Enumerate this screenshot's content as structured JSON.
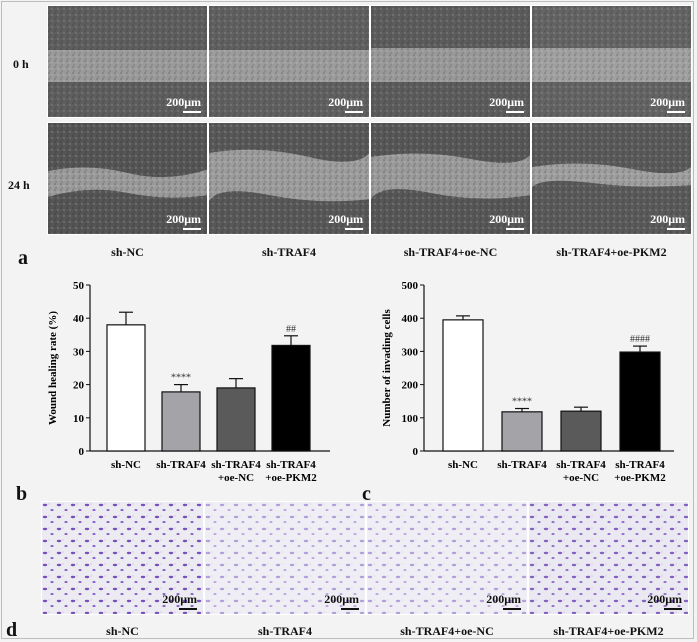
{
  "panels": {
    "a": {
      "letter": "a",
      "rows": [
        "0 h",
        "24 h"
      ],
      "columns": [
        "sh-NC",
        "sh-TRAF4",
        "sh-TRAF4+oe-NC",
        "sh-TRAF4+oe-PKM2"
      ],
      "scale_bar": "200μm"
    },
    "b": {
      "letter": "b"
    },
    "c": {
      "letter": "c"
    },
    "d": {
      "letter": "d",
      "columns": [
        "sh-NC",
        "sh-TRAF4",
        "sh-TRAF4+oe-NC",
        "sh-TRAF4+oe-PKM2"
      ],
      "scale_bar": "200μm"
    }
  },
  "chart_data": [
    {
      "type": "bar",
      "panel": "b",
      "categories": [
        [
          "sh-NC"
        ],
        [
          "sh-TRAF4"
        ],
        [
          "sh-TRAF4",
          "+oe-NC"
        ],
        [
          "sh-TRAF4",
          "+oe-PKM2"
        ]
      ],
      "values": [
        38,
        17.8,
        19,
        31.8
      ],
      "errors": [
        3.8,
        2.2,
        2.8,
        2.9
      ],
      "annotations": [
        "",
        "****",
        "",
        "##"
      ],
      "colors": [
        "#ffffff",
        "#a3a3a8",
        "#5a5a5a",
        "#000000"
      ],
      "ylabel": "Wound healing rate (%)",
      "ylim": [
        0,
        50
      ],
      "yticks": [
        0,
        10,
        20,
        30,
        40,
        50
      ]
    },
    {
      "type": "bar",
      "panel": "c",
      "categories": [
        [
          "sh-NC"
        ],
        [
          "sh-TRAF4"
        ],
        [
          "sh-TRAF4",
          "+oe-NC"
        ],
        [
          "sh-TRAF4",
          "+oe-PKM2"
        ]
      ],
      "values": [
        395,
        118,
        120,
        298
      ],
      "errors": [
        12,
        10,
        12,
        18
      ],
      "annotations": [
        "",
        "****",
        "",
        "####"
      ],
      "colors": [
        "#ffffff",
        "#a3a3a8",
        "#5a5a5a",
        "#000000"
      ],
      "ylabel": "Number of invading cells",
      "ylim": [
        0,
        500
      ],
      "yticks": [
        0,
        100,
        200,
        300,
        400,
        500
      ]
    }
  ]
}
